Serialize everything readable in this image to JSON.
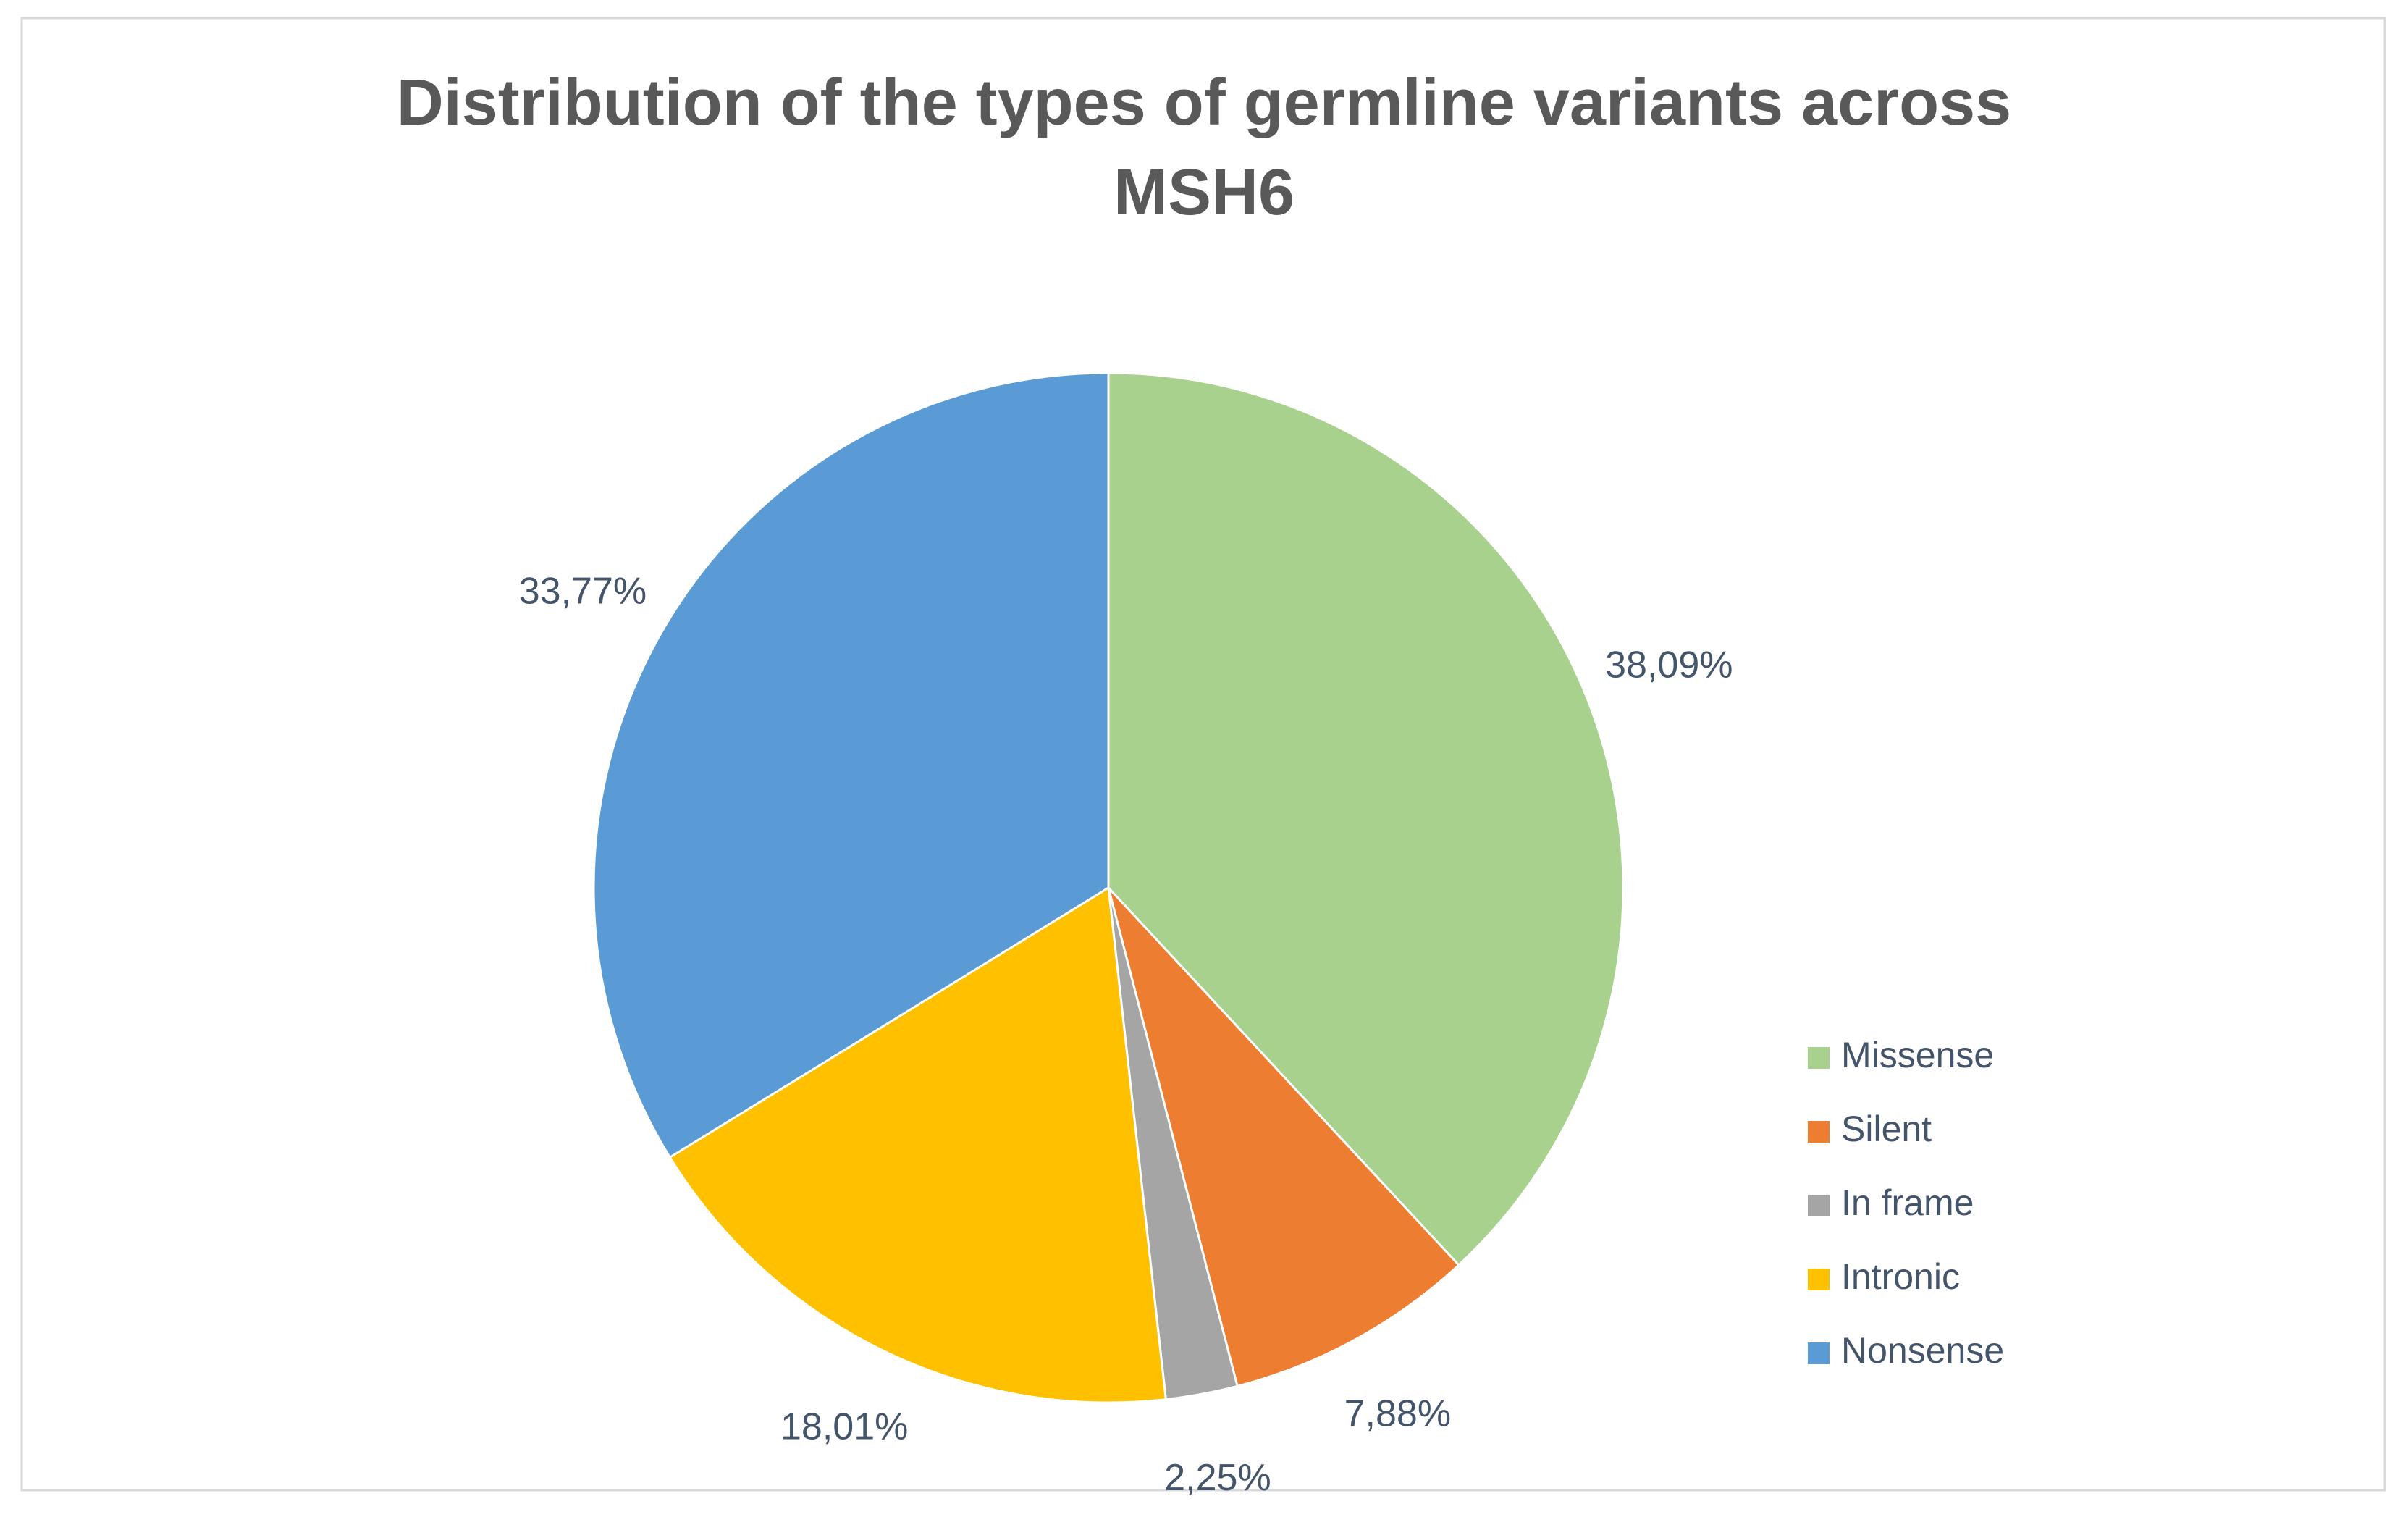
{
  "chart_data": {
    "type": "pie",
    "title": [
      "Distribution of the types of germline variants across",
      "MSH6"
    ],
    "categories": [
      "Missense",
      "Silent",
      "In frame",
      "Intronic",
      "Nonsense"
    ],
    "values": [
      38.09,
      7.88,
      2.25,
      18.01,
      33.77
    ],
    "value_labels": [
      "38,09%",
      "7,88%",
      "2,25%",
      "18,01%",
      "33,77%"
    ],
    "colors": [
      "#a9d18e",
      "#ed7d31",
      "#a5a5a5",
      "#ffc000",
      "#5b9bd5"
    ],
    "legend": "right"
  }
}
